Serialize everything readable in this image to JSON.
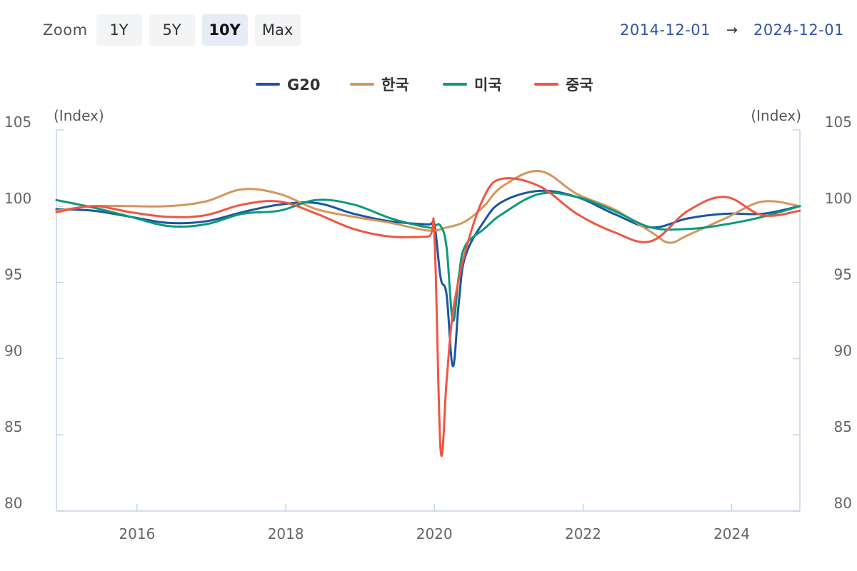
{
  "toolbar": {
    "zoom_label": "Zoom",
    "buttons": [
      "1Y",
      "5Y",
      "10Y",
      "Max"
    ],
    "active": "10Y"
  },
  "range": {
    "start": "2014-12-01",
    "arrow": "→",
    "end": "2024-12-01"
  },
  "chart_data": {
    "type": "line",
    "x_range": [
      "2014-12-01",
      "2024-12-01"
    ],
    "x_ticks": [
      "2016",
      "2018",
      "2020",
      "2022",
      "2024"
    ],
    "ylim": [
      80,
      105
    ],
    "y_ticks": [
      80,
      85,
      90,
      95,
      100,
      105
    ],
    "ylabel_left": "(Index)",
    "ylabel_right": "(Index)",
    "grid": false,
    "legend_position": "top-center",
    "series": [
      {
        "name": "G20",
        "color": "#1a56a0",
        "points": [
          [
            "2014-12-01",
            99.8
          ],
          [
            "2015-06-01",
            99.7
          ],
          [
            "2015-12-01",
            99.3
          ],
          [
            "2016-06-01",
            98.9
          ],
          [
            "2016-12-01",
            99.0
          ],
          [
            "2017-06-01",
            99.6
          ],
          [
            "2017-12-01",
            100.1
          ],
          [
            "2018-06-01",
            100.2
          ],
          [
            "2018-12-01",
            99.5
          ],
          [
            "2019-06-01",
            99.0
          ],
          [
            "2019-12-01",
            98.8
          ],
          [
            "2020-01-01",
            98.8
          ],
          [
            "2020-02-01",
            95.3
          ],
          [
            "2020-03-01",
            94.2
          ],
          [
            "2020-04-01",
            89.5
          ],
          [
            "2020-05-01",
            93.8
          ],
          [
            "2020-06-01",
            96.7
          ],
          [
            "2020-09-01",
            99.0
          ],
          [
            "2020-12-01",
            100.3
          ],
          [
            "2021-06-01",
            101.0
          ],
          [
            "2021-12-01",
            100.6
          ],
          [
            "2022-06-01",
            99.5
          ],
          [
            "2022-12-01",
            98.6
          ],
          [
            "2023-06-01",
            99.2
          ],
          [
            "2023-12-01",
            99.5
          ],
          [
            "2024-06-01",
            99.5
          ],
          [
            "2024-12-01",
            100.0
          ]
        ]
      },
      {
        "name": "한국",
        "color": "#d4965a",
        "points": [
          [
            "2014-12-01",
            99.7
          ],
          [
            "2015-06-01",
            100.0
          ],
          [
            "2015-12-01",
            100.0
          ],
          [
            "2016-06-01",
            100.0
          ],
          [
            "2016-12-01",
            100.3
          ],
          [
            "2017-06-01",
            101.1
          ],
          [
            "2017-12-01",
            100.8
          ],
          [
            "2018-06-01",
            99.8
          ],
          [
            "2018-12-01",
            99.3
          ],
          [
            "2019-06-01",
            98.9
          ],
          [
            "2019-12-01",
            98.4
          ],
          [
            "2020-03-01",
            98.6
          ],
          [
            "2020-06-01",
            99.0
          ],
          [
            "2020-09-01",
            100.0
          ],
          [
            "2020-12-01",
            101.3
          ],
          [
            "2021-06-01",
            102.3
          ],
          [
            "2021-12-01",
            100.8
          ],
          [
            "2022-06-01",
            99.8
          ],
          [
            "2022-12-01",
            98.3
          ],
          [
            "2023-03-01",
            97.6
          ],
          [
            "2023-06-01",
            98.1
          ],
          [
            "2023-12-01",
            99.2
          ],
          [
            "2024-06-01",
            100.3
          ],
          [
            "2024-12-01",
            100.0
          ]
        ]
      },
      {
        "name": "미국",
        "color": "#0a9a7a",
        "points": [
          [
            "2014-12-01",
            100.4
          ],
          [
            "2015-06-01",
            99.9
          ],
          [
            "2015-12-01",
            99.3
          ],
          [
            "2016-06-01",
            98.7
          ],
          [
            "2016-12-01",
            98.8
          ],
          [
            "2017-06-01",
            99.5
          ],
          [
            "2017-12-01",
            99.7
          ],
          [
            "2018-06-01",
            100.4
          ],
          [
            "2018-12-01",
            100.1
          ],
          [
            "2019-06-01",
            99.2
          ],
          [
            "2019-12-01",
            98.6
          ],
          [
            "2020-01-01",
            98.7
          ],
          [
            "2020-02-01",
            98.7
          ],
          [
            "2020-03-01",
            97.3
          ],
          [
            "2020-04-01",
            92.5
          ],
          [
            "2020-05-01",
            95.5
          ],
          [
            "2020-06-01",
            97.4
          ],
          [
            "2020-09-01",
            98.5
          ],
          [
            "2020-12-01",
            99.5
          ],
          [
            "2021-06-01",
            100.8
          ],
          [
            "2021-12-01",
            100.6
          ],
          [
            "2022-06-01",
            99.7
          ],
          [
            "2022-12-01",
            98.6
          ],
          [
            "2023-06-01",
            98.5
          ],
          [
            "2023-12-01",
            98.8
          ],
          [
            "2024-06-01",
            99.3
          ],
          [
            "2024-12-01",
            100.0
          ]
        ]
      },
      {
        "name": "중국",
        "color": "#f05542",
        "points": [
          [
            "2014-12-01",
            99.6
          ],
          [
            "2015-06-01",
            100.0
          ],
          [
            "2015-12-01",
            99.6
          ],
          [
            "2016-06-01",
            99.3
          ],
          [
            "2016-12-01",
            99.4
          ],
          [
            "2017-06-01",
            100.1
          ],
          [
            "2017-12-01",
            100.3
          ],
          [
            "2018-06-01",
            99.5
          ],
          [
            "2018-12-01",
            98.5
          ],
          [
            "2019-06-01",
            98.0
          ],
          [
            "2019-12-01",
            98.0
          ],
          [
            "2020-01-01",
            98.1
          ],
          [
            "2020-02-01",
            84.0
          ],
          [
            "2020-03-01",
            88.5
          ],
          [
            "2020-04-01",
            93.0
          ],
          [
            "2020-06-01",
            97.0
          ],
          [
            "2020-09-01",
            100.6
          ],
          [
            "2020-12-01",
            101.8
          ],
          [
            "2021-06-01",
            101.3
          ],
          [
            "2021-12-01",
            99.5
          ],
          [
            "2022-06-01",
            98.3
          ],
          [
            "2022-12-01",
            97.7
          ],
          [
            "2023-06-01",
            99.7
          ],
          [
            "2023-12-01",
            100.6
          ],
          [
            "2024-06-01",
            99.4
          ],
          [
            "2024-12-01",
            99.7
          ]
        ]
      }
    ]
  }
}
